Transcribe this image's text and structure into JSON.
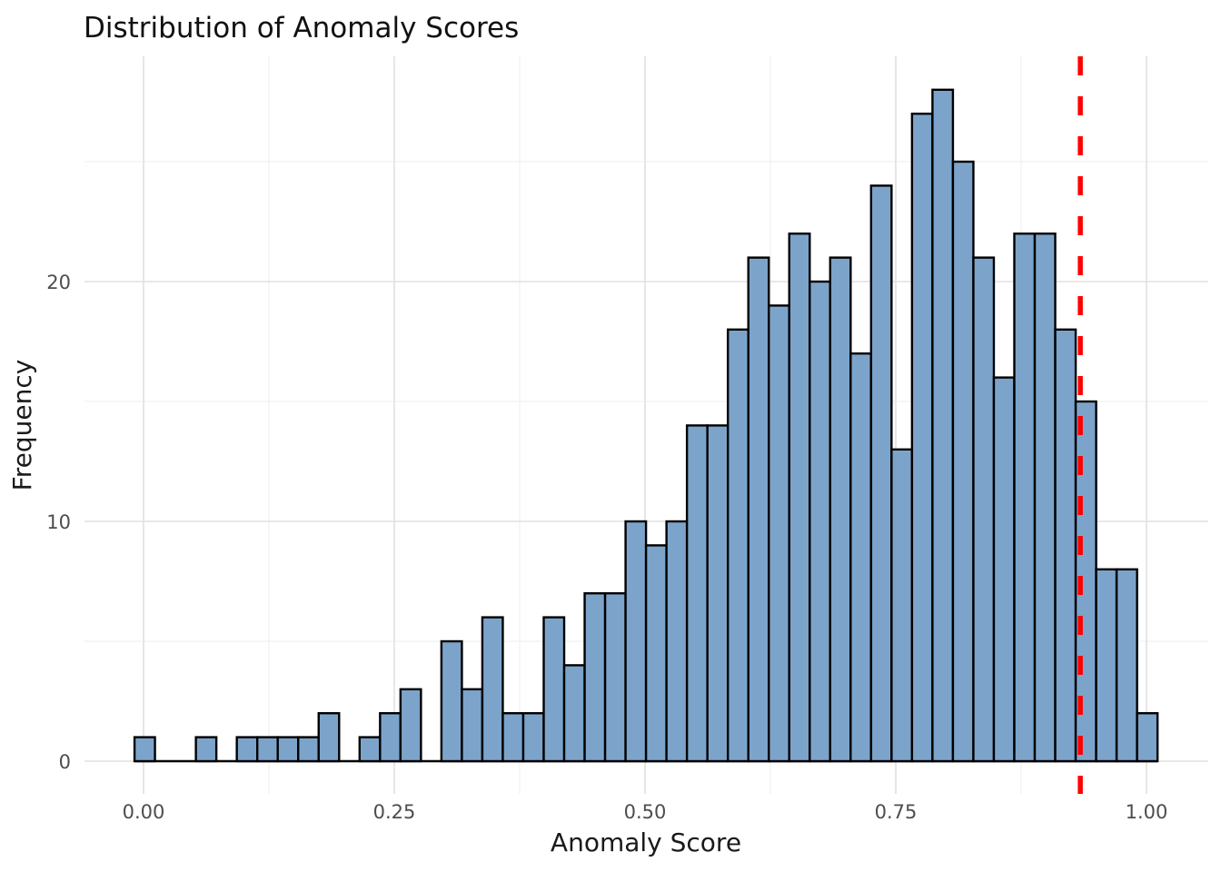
{
  "chart_data": {
    "type": "bar",
    "subtype": "histogram",
    "title": "Distribution of Anomaly Scores",
    "xlabel": "Anomaly Score",
    "ylabel": "Frequency",
    "grid": true,
    "legend": false,
    "n_total": 500,
    "bins": {
      "start": -0.009,
      "width": 0.0204,
      "counts": [
        1,
        0,
        0,
        1,
        0,
        1,
        1,
        1,
        1,
        2,
        0,
        1,
        2,
        3,
        0,
        5,
        3,
        6,
        2,
        2,
        6,
        4,
        7,
        7,
        10,
        9,
        10,
        14,
        14,
        18,
        21,
        19,
        22,
        20,
        21,
        17,
        24,
        13,
        27,
        28,
        25,
        21,
        16,
        22,
        22,
        18,
        15,
        8,
        8,
        2
      ]
    },
    "x_axis": {
      "range_shown": [
        -0.06,
        1.062
      ],
      "major_ticks": [
        {
          "value": 0.0,
          "label": "0.00"
        },
        {
          "value": 0.25,
          "label": "0.25"
        },
        {
          "value": 0.5,
          "label": "0.50"
        },
        {
          "value": 0.75,
          "label": "0.75"
        },
        {
          "value": 1.0,
          "label": "1.00"
        }
      ],
      "minor_gridlines": [
        0.125,
        0.375,
        0.625,
        0.875
      ]
    },
    "y_axis": {
      "range_shown": [
        -1.4,
        29.4
      ],
      "major_ticks": [
        {
          "value": 0,
          "label": "0"
        },
        {
          "value": 10,
          "label": "10"
        },
        {
          "value": 20,
          "label": "20"
        }
      ],
      "minor_gridlines": [
        5,
        15,
        25
      ]
    },
    "threshold_line": {
      "x": 0.934,
      "style": "dashed",
      "color": "#FF0000"
    },
    "style": {
      "bar_fill": "#7CA4CB",
      "bar_edge": "#000000",
      "grid_major_color": "#E4E4E4",
      "grid_minor_color": "#F1F1F1",
      "tick_label_color": "#4D4D4D",
      "text_color": "#1A1A1A",
      "title_color": "#111111",
      "background": "#FFFFFF"
    }
  }
}
